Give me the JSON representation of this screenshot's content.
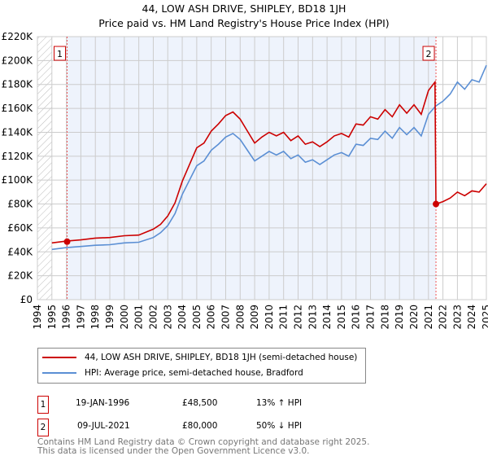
{
  "header": {
    "title": "44, LOW ASH DRIVE, SHIPLEY, BD18 1JH",
    "subtitle": "Price paid vs. HM Land Registry's House Price Index (HPI)"
  },
  "chart_data": {
    "type": "line",
    "title": "44, LOW ASH DRIVE, SHIPLEY, BD18 1JH",
    "subtitle": "Price paid vs. HM Land Registry's House Price Index (HPI)",
    "xlim": [
      1994,
      2025
    ],
    "ylim": [
      0,
      220000
    ],
    "x_ticks": [
      "1994",
      "1995",
      "1996",
      "1997",
      "1998",
      "1999",
      "2000",
      "2001",
      "2002",
      "2003",
      "2004",
      "2005",
      "2006",
      "2007",
      "2008",
      "2009",
      "2010",
      "2011",
      "2012",
      "2013",
      "2014",
      "2015",
      "2016",
      "2017",
      "2018",
      "2019",
      "2020",
      "2021",
      "2022",
      "2023",
      "2024",
      "2025"
    ],
    "y_ticks": [
      "£0",
      "£20K",
      "£40K",
      "£60K",
      "£80K",
      "£100K",
      "£120K",
      "£140K",
      "£160K",
      "£180K",
      "£200K",
      "£220K"
    ],
    "grid": true,
    "series": [
      {
        "name": "44, LOW ASH DRIVE, SHIPLEY, BD18 1JH (semi-detached house)",
        "color": "#cc0000",
        "x": [
          1995,
          1996,
          1997,
          1998,
          1999,
          2000,
          2001,
          2002,
          2002.5,
          2003,
          2003.5,
          2004,
          2004.5,
          2005,
          2005.5,
          2006,
          2006.5,
          2007,
          2007.5,
          2008,
          2008.5,
          2009,
          2009.5,
          2010,
          2010.5,
          2011,
          2011.5,
          2012,
          2012.5,
          2013,
          2013.5,
          2014,
          2014.5,
          2015,
          2015.5,
          2016,
          2016.5,
          2017,
          2017.5,
          2018,
          2018.5,
          2019,
          2019.5,
          2020,
          2020.5,
          2021,
          2021.45,
          2021.52,
          2022,
          2022.5,
          2023,
          2023.5,
          2024,
          2024.5,
          2025
        ],
        "y": [
          47500,
          49000,
          50000,
          51500,
          52000,
          53500,
          54000,
          59000,
          63000,
          70000,
          81000,
          99000,
          113000,
          127000,
          131000,
          141000,
          147000,
          154000,
          157000,
          151000,
          141000,
          131000,
          136000,
          140000,
          137000,
          140000,
          133000,
          137000,
          130000,
          132000,
          128000,
          132000,
          137000,
          139000,
          136000,
          147000,
          146000,
          153000,
          151000,
          159000,
          153000,
          163000,
          156000,
          163000,
          155000,
          175000,
          182000,
          80000,
          82000,
          85000,
          90000,
          87000,
          91000,
          90000,
          97000
        ]
      },
      {
        "name": "HPI: Average price, semi-detached house, Bradford",
        "color": "#5b8fd4",
        "x": [
          1995,
          1996,
          1997,
          1998,
          1999,
          2000,
          2001,
          2002,
          2002.5,
          2003,
          2003.5,
          2004,
          2004.5,
          2005,
          2005.5,
          2006,
          2006.5,
          2007,
          2007.5,
          2008,
          2008.5,
          2009,
          2009.5,
          2010,
          2010.5,
          2011,
          2011.5,
          2012,
          2012.5,
          2013,
          2013.5,
          2014,
          2014.5,
          2015,
          2015.5,
          2016,
          2016.5,
          2017,
          2017.5,
          2018,
          2018.5,
          2019,
          2019.5,
          2020,
          2020.5,
          2021,
          2021.5,
          2022,
          2022.5,
          2023,
          2023.5,
          2024,
          2024.5,
          2025
        ],
        "y": [
          42000,
          43500,
          44500,
          45500,
          46000,
          47500,
          48000,
          52000,
          56000,
          62000,
          72000,
          88000,
          100000,
          112000,
          116000,
          125000,
          130000,
          136000,
          139000,
          134000,
          125000,
          116000,
          120000,
          124000,
          121000,
          124000,
          118000,
          121000,
          115000,
          117000,
          113000,
          117000,
          121000,
          123000,
          120000,
          130000,
          129000,
          135000,
          134000,
          141000,
          135000,
          144000,
          138000,
          144000,
          137000,
          155000,
          162000,
          166000,
          172000,
          182000,
          176000,
          184000,
          182000,
          196000
        ]
      }
    ],
    "sales": [
      {
        "label": "1",
        "x": 1996.05,
        "y": 48500,
        "date": "19-JAN-1996",
        "price": "£48,500",
        "hpi": "13% ↑ HPI"
      },
      {
        "label": "2",
        "x": 2021.52,
        "y": 80000,
        "date": "09-JUL-2021",
        "price": "£80,000",
        "hpi": "50% ↓ HPI"
      }
    ],
    "legend_position": "bottom"
  },
  "footer": {
    "line1": "Contains HM Land Registry data © Crown copyright and database right 2025.",
    "line2": "This data is licensed under the Open Government Licence v3.0."
  }
}
